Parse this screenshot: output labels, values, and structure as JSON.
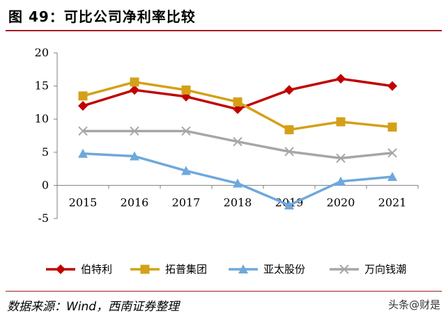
{
  "title": "图 49：可比公司净利率比较",
  "source": "数据来源：Wind，西南证券整理",
  "watermark": "头条@财是",
  "chart_data": {
    "type": "line",
    "categories": [
      "2015",
      "2016",
      "2017",
      "2018",
      "2019",
      "2020",
      "2021"
    ],
    "ylim": [
      -5,
      20
    ],
    "yticks": [
      -5,
      0,
      5,
      10,
      15,
      20
    ],
    "grid": false,
    "legend_position": "bottom",
    "series": [
      {
        "name": "伯特利",
        "marker": "diamond",
        "color": "#c00000",
        "values": [
          12.0,
          14.4,
          13.4,
          11.5,
          14.4,
          16.1,
          15.0
        ]
      },
      {
        "name": "拓普集团",
        "marker": "square",
        "color": "#d4a017",
        "values": [
          13.5,
          15.6,
          14.4,
          12.6,
          8.4,
          9.6,
          8.8
        ]
      },
      {
        "name": "亚太股份",
        "marker": "triangle",
        "color": "#6fa8dc",
        "values": [
          4.8,
          4.4,
          2.2,
          0.3,
          -3.0,
          0.6,
          1.3
        ]
      },
      {
        "name": "万向钱潮",
        "marker": "x",
        "color": "#a6a6a6",
        "values": [
          8.2,
          8.2,
          8.2,
          6.6,
          5.1,
          4.1,
          4.9
        ]
      }
    ]
  }
}
